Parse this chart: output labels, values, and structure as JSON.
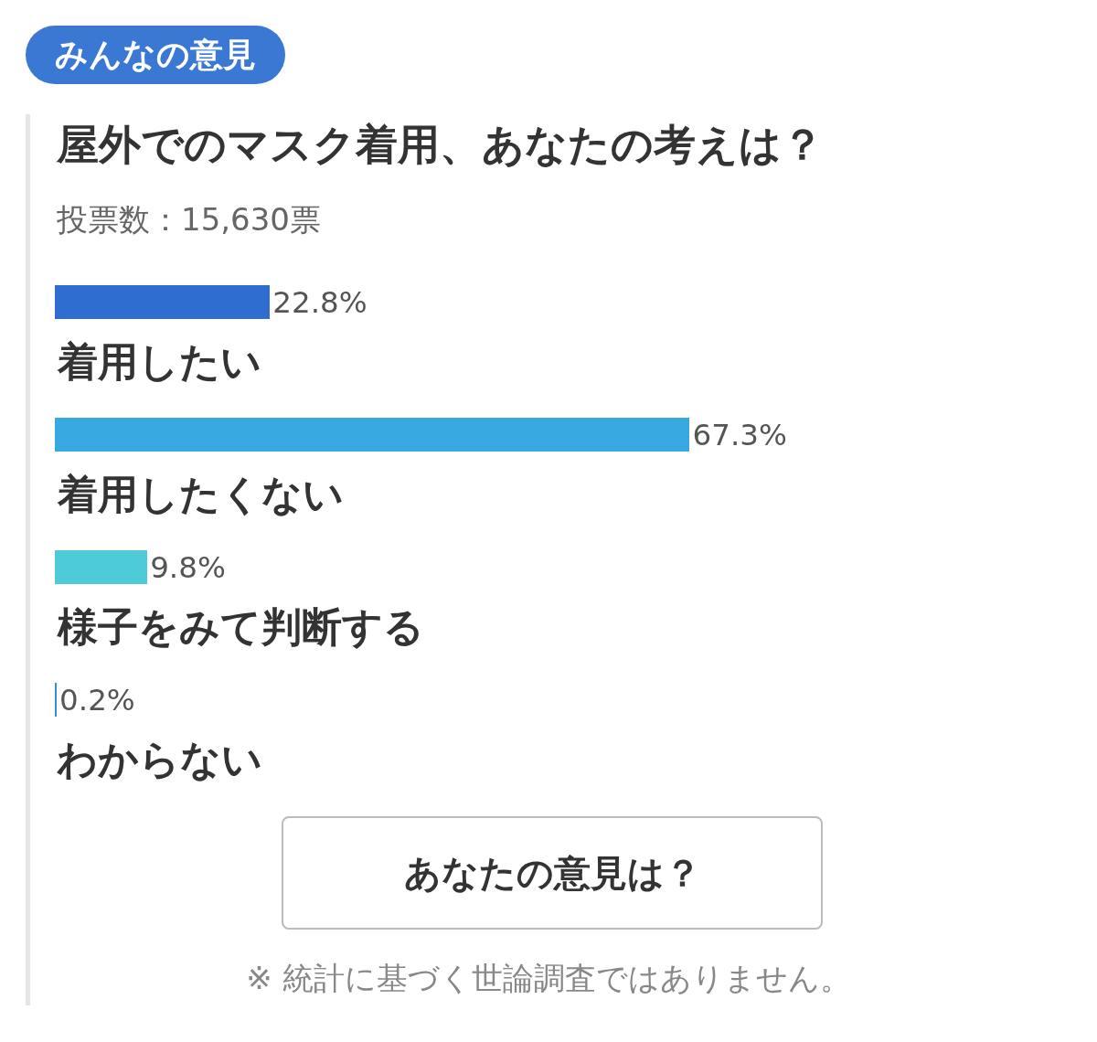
{
  "chart_data": {
    "type": "bar",
    "orientation": "horizontal",
    "title": "屋外でのマスク着用、あなたの考えは？",
    "subtitle": "投票数：15,630票",
    "categories": [
      "着用したい",
      "着用したくない",
      "様子をみて判断する",
      "わからない"
    ],
    "values": [
      22.8,
      67.3,
      9.8,
      0.2
    ],
    "colors": [
      "#2f6ed0",
      "#38a8e0",
      "#4ecbd8",
      "#3a8fd4"
    ],
    "value_labels": [
      "22.8%",
      "67.3%",
      "9.8%",
      "0.2%"
    ],
    "annotations": [
      "みんなの意見",
      "あなたの意見は？",
      "※ 統計に基づく世論調査ではありません。"
    ]
  }
}
